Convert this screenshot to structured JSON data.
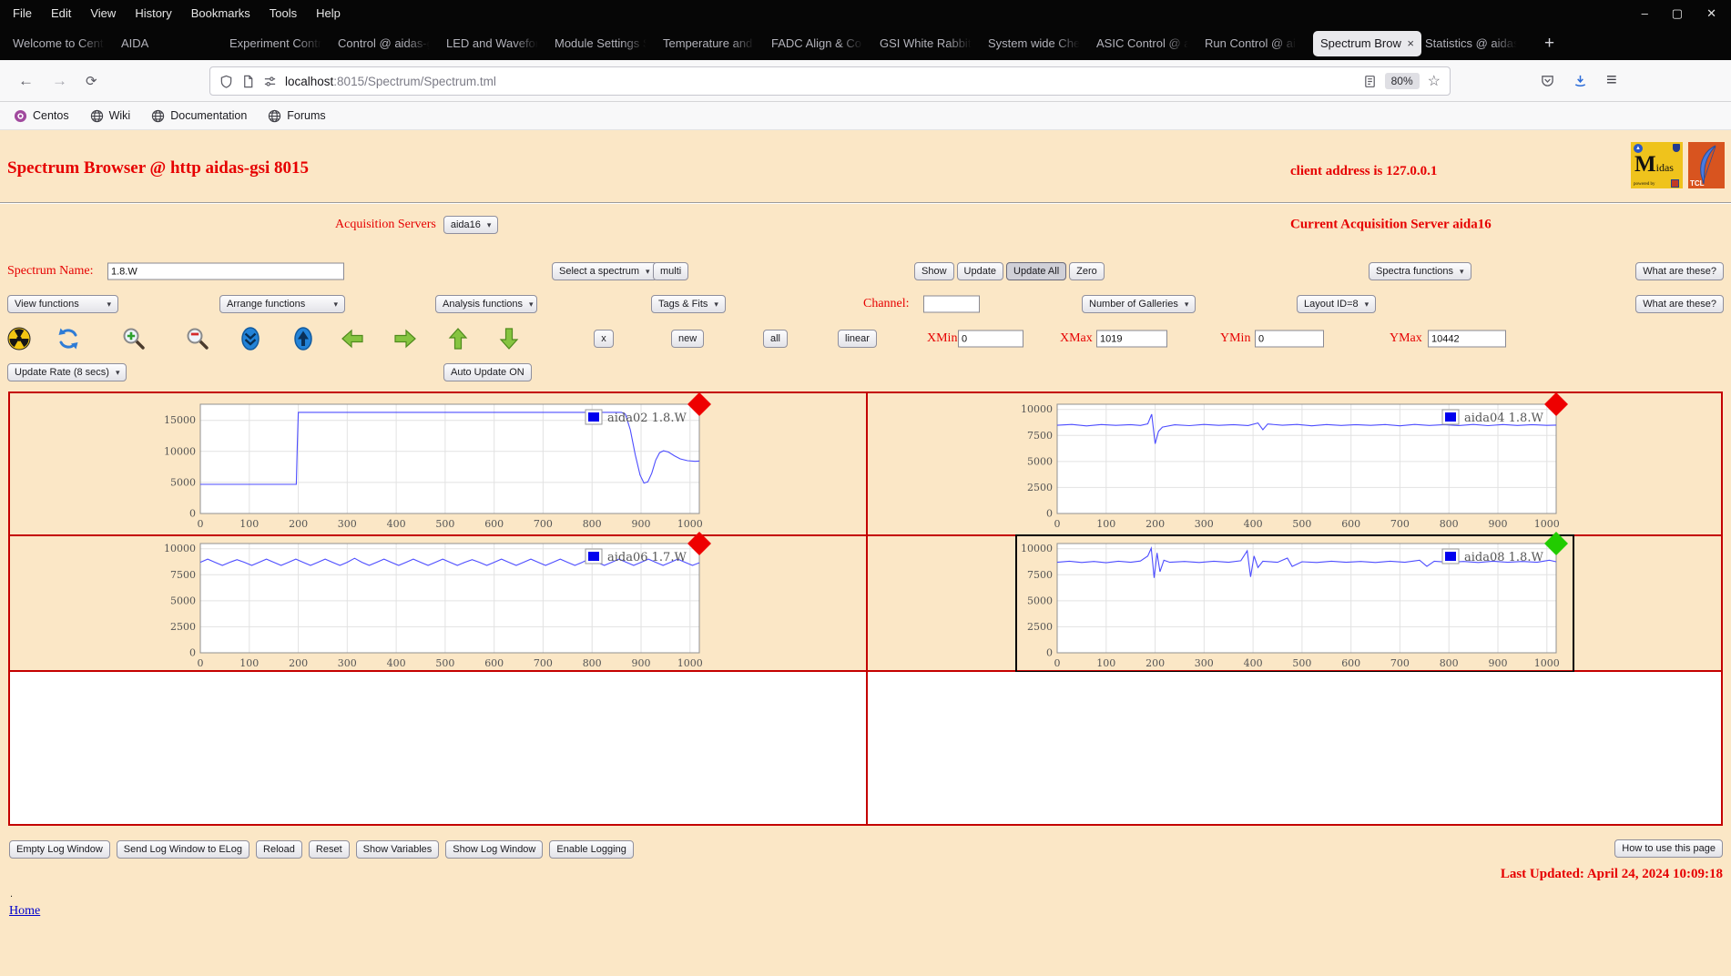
{
  "browser": {
    "menu": [
      "File",
      "Edit",
      "View",
      "History",
      "Bookmarks",
      "Tools",
      "Help"
    ],
    "window_controls": [
      "–",
      "▢",
      "✕"
    ],
    "tabs": [
      {
        "label": "Welcome to Cent"
      },
      {
        "label": "AIDA"
      },
      {
        "label": "Experiment Contr"
      },
      {
        "label": "Control @ aidas-g"
      },
      {
        "label": "LED and Wavefor"
      },
      {
        "label": "Module Settings S"
      },
      {
        "label": "Temperature and"
      },
      {
        "label": "FADC Align & Co"
      },
      {
        "label": "GSI White Rabbit"
      },
      {
        "label": "System wide Che"
      },
      {
        "label": "ASIC Control @ a"
      },
      {
        "label": "Run Control @ ai"
      },
      {
        "label": "Spectrum Brow",
        "active": true
      },
      {
        "label": "Statistics @ aidas"
      }
    ],
    "tab_close": "×",
    "new_tab": "+",
    "nav": {
      "back": "←",
      "forward": "→",
      "reload": "⟳"
    },
    "url": {
      "host": "localhost",
      "rest": ":8015/Spectrum/Spectrum.tml"
    },
    "zoom_badge": "80%",
    "star": "☆",
    "hamburger": "≡",
    "bookmarks": [
      {
        "label": "Centos",
        "icon": "centos-icon"
      },
      {
        "label": "Wiki",
        "icon": "globe-icon"
      },
      {
        "label": "Documentation",
        "icon": "globe-icon"
      },
      {
        "label": "Forums",
        "icon": "globe-icon"
      }
    ]
  },
  "page": {
    "title": "Spectrum Browser @ http aidas-gsi 8015",
    "client_address": "client address is 127.0.0.1",
    "acquisition_servers_label": "Acquisition Servers",
    "acquisition_server_value": "aida16",
    "current_server": "Current Acquisition Server aida16",
    "spectrum_name_label": "Spectrum Name:",
    "spectrum_name_value": "1.8.W",
    "select_spectrum": "Select a spectrum",
    "multi": "multi",
    "show": "Show",
    "update": "Update",
    "update_all": "Update All",
    "zero": "Zero",
    "spectra_functions": "Spectra functions",
    "what_are_these": "What are these?",
    "view_functions": "View functions",
    "arrange_functions": "Arrange functions",
    "analysis_functions": "Analysis functions",
    "tags_fits": "Tags & Fits",
    "channel_label": "Channel:",
    "channel_value": "",
    "number_of_galleries": "Number of Galleries",
    "layout_id": "Layout ID=8",
    "toolbar_icons": [
      "radiation-icon",
      "refresh-icon",
      "zoom-in-icon",
      "zoom-out-icon",
      "scroll-down-icon",
      "scroll-up-icon",
      "arrow-left-icon",
      "arrow-right-icon",
      "arrow-up-icon",
      "arrow-down-icon"
    ],
    "x_button": "x",
    "new_button": "new",
    "all_button": "all",
    "linear_button": "linear",
    "xmin_label": "XMin",
    "xmin": "0",
    "xmax_label": "XMax",
    "xmax": "1019",
    "ymin_label": "YMin",
    "ymin": "0",
    "ymax_label": "YMax",
    "ymax": "10442",
    "update_rate": "Update Rate (8 secs)",
    "auto_update": "Auto Update ON",
    "footer_buttons": [
      "Empty Log Window",
      "Send Log Window to ELog",
      "Reload",
      "Reset",
      "Show Variables",
      "Show Log Window",
      "Enable Logging"
    ],
    "how_to": "How to use this page",
    "last_updated": "Last Updated: April 24, 2024 10:09:18",
    "dot": ".",
    "home": "Home"
  },
  "colors": {
    "page_background": "#fbe7c6",
    "heading_red": "#e60000",
    "gallery_border_red": "#c40000",
    "spectrum_line_blue": "#4d4dff",
    "status_red": "#ee0000",
    "status_green": "#22cc00"
  },
  "chart_data": [
    {
      "type": "line",
      "name": "aida02 1.8.W",
      "line_color": "#4d4dff",
      "status_color": "#ee0000",
      "selected": false,
      "grid": true,
      "legend_position": "top-right",
      "xlim": [
        0,
        1019
      ],
      "ylim": [
        0,
        17600
      ],
      "x_ticks": [
        0,
        100,
        200,
        300,
        400,
        500,
        600,
        700,
        800,
        900,
        1000
      ],
      "y_ticks": [
        0,
        5000,
        10000,
        15000
      ],
      "points": [
        [
          0,
          4700
        ],
        [
          50,
          4700
        ],
        [
          100,
          4700
        ],
        [
          150,
          4700
        ],
        [
          196,
          4700
        ],
        [
          198,
          11000
        ],
        [
          200,
          16300
        ],
        [
          300,
          16300
        ],
        [
          400,
          16300
        ],
        [
          500,
          16300
        ],
        [
          600,
          16300
        ],
        [
          700,
          16300
        ],
        [
          800,
          16300
        ],
        [
          860,
          16300
        ],
        [
          868,
          16000
        ],
        [
          878,
          13500
        ],
        [
          888,
          9500
        ],
        [
          898,
          6200
        ],
        [
          906,
          4900
        ],
        [
          914,
          5100
        ],
        [
          922,
          6500
        ],
        [
          930,
          8600
        ],
        [
          938,
          9800
        ],
        [
          946,
          10100
        ],
        [
          956,
          9900
        ],
        [
          968,
          9300
        ],
        [
          980,
          8800
        ],
        [
          995,
          8500
        ],
        [
          1010,
          8400
        ],
        [
          1019,
          8450
        ]
      ]
    },
    {
      "type": "line",
      "name": "aida04 1.8.W",
      "line_color": "#4d4dff",
      "status_color": "#ee0000",
      "selected": false,
      "grid": true,
      "legend_position": "top-right",
      "xlim": [
        0,
        1019
      ],
      "ylim": [
        0,
        10500
      ],
      "x_ticks": [
        0,
        100,
        200,
        300,
        400,
        500,
        600,
        700,
        800,
        900,
        1000
      ],
      "y_ticks": [
        0,
        2500,
        5000,
        7500,
        10000
      ],
      "points": [
        [
          0,
          8480
        ],
        [
          30,
          8560
        ],
        [
          60,
          8420
        ],
        [
          90,
          8550
        ],
        [
          120,
          8470
        ],
        [
          150,
          8540
        ],
        [
          170,
          8460
        ],
        [
          185,
          8620
        ],
        [
          193,
          9550
        ],
        [
          200,
          6700
        ],
        [
          207,
          7900
        ],
        [
          215,
          8300
        ],
        [
          240,
          8520
        ],
        [
          270,
          8440
        ],
        [
          300,
          8560
        ],
        [
          330,
          8470
        ],
        [
          360,
          8540
        ],
        [
          390,
          8450
        ],
        [
          410,
          8700
        ],
        [
          420,
          8050
        ],
        [
          430,
          8600
        ],
        [
          460,
          8480
        ],
        [
          490,
          8560
        ],
        [
          520,
          8430
        ],
        [
          550,
          8550
        ],
        [
          580,
          8460
        ],
        [
          610,
          8540
        ],
        [
          640,
          8470
        ],
        [
          670,
          8550
        ],
        [
          700,
          8430
        ],
        [
          730,
          8560
        ],
        [
          760,
          8460
        ],
        [
          790,
          8540
        ],
        [
          820,
          8450
        ],
        [
          850,
          8560
        ],
        [
          880,
          8440
        ],
        [
          910,
          8550
        ],
        [
          940,
          8460
        ],
        [
          970,
          8540
        ],
        [
          1000,
          8470
        ],
        [
          1019,
          8500
        ]
      ]
    },
    {
      "type": "line",
      "name": "aida06 1.7.W",
      "line_color": "#4d4dff",
      "status_color": "#ee0000",
      "selected": false,
      "grid": true,
      "legend_position": "top-right",
      "xlim": [
        0,
        1019
      ],
      "ylim": [
        0,
        10500
      ],
      "x_ticks": [
        0,
        100,
        200,
        300,
        400,
        500,
        600,
        700,
        800,
        900,
        1000
      ],
      "y_ticks": [
        0,
        2500,
        5000,
        7500,
        10000
      ],
      "points": [
        [
          0,
          8700
        ],
        [
          15,
          9000
        ],
        [
          30,
          8700
        ],
        [
          45,
          8400
        ],
        [
          60,
          8700
        ],
        [
          75,
          8950
        ],
        [
          90,
          8700
        ],
        [
          105,
          8400
        ],
        [
          120,
          8700
        ],
        [
          135,
          9000
        ],
        [
          150,
          8700
        ],
        [
          165,
          8400
        ],
        [
          180,
          8700
        ],
        [
          195,
          9000
        ],
        [
          210,
          8700
        ],
        [
          225,
          8400
        ],
        [
          240,
          8700
        ],
        [
          255,
          9000
        ],
        [
          270,
          8700
        ],
        [
          285,
          8400
        ],
        [
          300,
          8700
        ],
        [
          315,
          9080
        ],
        [
          330,
          8700
        ],
        [
          345,
          8400
        ],
        [
          360,
          8700
        ],
        [
          375,
          9000
        ],
        [
          390,
          8700
        ],
        [
          405,
          8400
        ],
        [
          420,
          8700
        ],
        [
          435,
          9000
        ],
        [
          450,
          8700
        ],
        [
          465,
          8400
        ],
        [
          480,
          8700
        ],
        [
          495,
          9000
        ],
        [
          510,
          8700
        ],
        [
          525,
          8400
        ],
        [
          540,
          8700
        ],
        [
          555,
          8950
        ],
        [
          570,
          8700
        ],
        [
          585,
          8400
        ],
        [
          600,
          8700
        ],
        [
          615,
          9000
        ],
        [
          630,
          8700
        ],
        [
          645,
          8400
        ],
        [
          660,
          8700
        ],
        [
          675,
          9000
        ],
        [
          690,
          8700
        ],
        [
          705,
          8400
        ],
        [
          720,
          8700
        ],
        [
          735,
          9000
        ],
        [
          750,
          8700
        ],
        [
          765,
          8400
        ],
        [
          780,
          8700
        ],
        [
          795,
          9050
        ],
        [
          810,
          8700
        ],
        [
          825,
          8400
        ],
        [
          840,
          8700
        ],
        [
          855,
          9000
        ],
        [
          870,
          8700
        ],
        [
          885,
          8400
        ],
        [
          900,
          8700
        ],
        [
          915,
          9000
        ],
        [
          930,
          8700
        ],
        [
          945,
          8400
        ],
        [
          960,
          8700
        ],
        [
          975,
          9000
        ],
        [
          990,
          8700
        ],
        [
          1005,
          8400
        ],
        [
          1019,
          8650
        ]
      ]
    },
    {
      "type": "line",
      "name": "aida08 1.8.W",
      "line_color": "#4d4dff",
      "status_color": "#22cc00",
      "selected": true,
      "grid": true,
      "legend_position": "top-right",
      "xlim": [
        0,
        1019
      ],
      "ylim": [
        0,
        10500
      ],
      "x_ticks": [
        0,
        100,
        200,
        300,
        400,
        500,
        600,
        700,
        800,
        900,
        1000
      ],
      "y_ticks": [
        0,
        2500,
        5000,
        7500,
        10000
      ],
      "points": [
        [
          0,
          8700
        ],
        [
          25,
          8800
        ],
        [
          50,
          8680
        ],
        [
          75,
          8780
        ],
        [
          100,
          8650
        ],
        [
          125,
          8800
        ],
        [
          150,
          8700
        ],
        [
          170,
          8820
        ],
        [
          185,
          9300
        ],
        [
          192,
          10050
        ],
        [
          198,
          7200
        ],
        [
          204,
          9600
        ],
        [
          210,
          7800
        ],
        [
          218,
          8900
        ],
        [
          230,
          8700
        ],
        [
          260,
          8780
        ],
        [
          290,
          8680
        ],
        [
          320,
          8800
        ],
        [
          350,
          8700
        ],
        [
          375,
          8850
        ],
        [
          388,
          9800
        ],
        [
          395,
          7300
        ],
        [
          402,
          9300
        ],
        [
          410,
          8200
        ],
        [
          420,
          8800
        ],
        [
          450,
          8700
        ],
        [
          470,
          9100
        ],
        [
          480,
          8300
        ],
        [
          500,
          8750
        ],
        [
          530,
          8680
        ],
        [
          560,
          8800
        ],
        [
          590,
          8700
        ],
        [
          620,
          8780
        ],
        [
          650,
          8680
        ],
        [
          680,
          8800
        ],
        [
          710,
          8700
        ],
        [
          740,
          8900
        ],
        [
          755,
          8300
        ],
        [
          770,
          8800
        ],
        [
          800,
          8700
        ],
        [
          830,
          8780
        ],
        [
          860,
          8680
        ],
        [
          890,
          8800
        ],
        [
          920,
          8700
        ],
        [
          950,
          8780
        ],
        [
          980,
          8700
        ],
        [
          1005,
          8900
        ],
        [
          1019,
          8750
        ]
      ]
    }
  ]
}
